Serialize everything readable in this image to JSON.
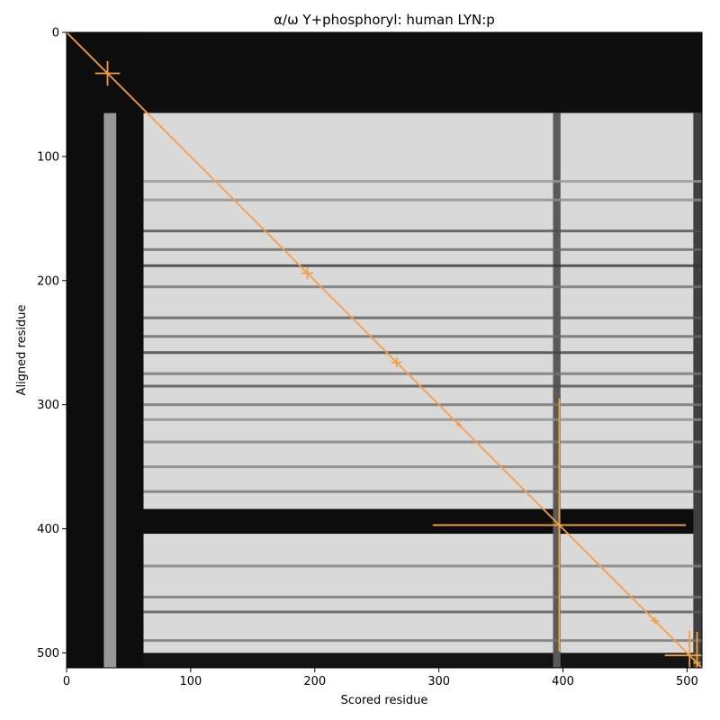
{
  "chart_data": {
    "type": "heatmap",
    "title": "α/ω Y+phosphoryl: human LYN:p",
    "xlabel": "Scored residue",
    "ylabel": "Aligned residue",
    "xlim": [
      0,
      512
    ],
    "ylim": [
      512,
      0
    ],
    "x_ticks": [
      0,
      100,
      200,
      300,
      400,
      500
    ],
    "y_ticks": [
      0,
      100,
      200,
      300,
      400,
      500
    ],
    "colormap": "grayscale",
    "accent_color": "#f5a040",
    "heatmap_regions": [
      {
        "x": [
          0,
          512
        ],
        "y": [
          0,
          65
        ],
        "value": 0.06
      },
      {
        "x": [
          0,
          62
        ],
        "y": [
          0,
          512
        ],
        "value": 0.05
      },
      {
        "x": [
          62,
          512
        ],
        "y": [
          65,
          512
        ],
        "value": 0.85
      },
      {
        "x": [
          62,
          512
        ],
        "y": [
          384,
          404
        ],
        "value": 0.05
      },
      {
        "x": [
          62,
          512
        ],
        "y": [
          500,
          512
        ],
        "value": 0.08
      },
      {
        "x": [
          392,
          398
        ],
        "y": [
          65,
          512
        ],
        "value": 0.35
      },
      {
        "x": [
          30,
          40
        ],
        "y": [
          65,
          512
        ],
        "value": 0.6
      },
      {
        "x": [
          505,
          512
        ],
        "y": [
          65,
          512
        ],
        "value": 0.25
      }
    ],
    "horizontal_bands": [
      {
        "y": 120,
        "value": 0.6
      },
      {
        "y": 135,
        "value": 0.55
      },
      {
        "y": 160,
        "value": 0.3
      },
      {
        "y": 175,
        "value": 0.4
      },
      {
        "y": 188,
        "value": 0.2
      },
      {
        "y": 205,
        "value": 0.45
      },
      {
        "y": 230,
        "value": 0.35
      },
      {
        "y": 245,
        "value": 0.4
      },
      {
        "y": 258,
        "value": 0.25
      },
      {
        "y": 275,
        "value": 0.45
      },
      {
        "y": 285,
        "value": 0.3
      },
      {
        "y": 300,
        "value": 0.45
      },
      {
        "y": 312,
        "value": 0.55
      },
      {
        "y": 330,
        "value": 0.5
      },
      {
        "y": 350,
        "value": 0.5
      },
      {
        "y": 370,
        "value": 0.45
      },
      {
        "y": 430,
        "value": 0.5
      },
      {
        "y": 455,
        "value": 0.45
      },
      {
        "y": 467,
        "value": 0.35
      },
      {
        "y": 490,
        "value": 0.45
      }
    ],
    "diagonal": {
      "x": [
        0,
        512
      ],
      "y": [
        0,
        512
      ]
    },
    "markers": [
      {
        "x": 33,
        "y": 33,
        "x_err": 10,
        "y_err": 10
      },
      {
        "x": 194,
        "y": 194,
        "x_err": 5,
        "y_err": 5
      },
      {
        "x": 266,
        "y": 266,
        "x_err": 4,
        "y_err": 4
      },
      {
        "x": 316,
        "y": 316,
        "x_err": 2,
        "y_err": 2
      },
      {
        "x": 397,
        "y": 397,
        "x_err": 102,
        "y_err": 102
      },
      {
        "x": 474,
        "y": 474,
        "x_err": 3,
        "y_err": 3
      },
      {
        "x": 502,
        "y": 502,
        "x_err": 20,
        "y_err": 20
      },
      {
        "x": 508,
        "y": 508,
        "x_err": 3,
        "y_err": 25
      }
    ]
  }
}
